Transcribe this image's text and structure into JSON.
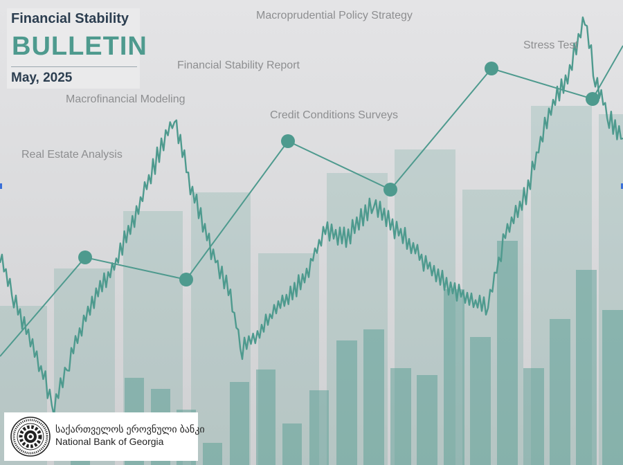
{
  "header": {
    "line1": "Financial Stability",
    "line2": "BULLETIN",
    "date": "May, 2025"
  },
  "topics": [
    "Macroprudential Policy Strategy",
    "Financial Stability Report",
    "Macrofinancial Modeling",
    "Credit Conditions Surveys",
    "Real Estate Analysis",
    "Stress Test"
  ],
  "publisher": {
    "name_ka": "საქართველოს ეროვნული ბანკი",
    "name_en": "National Bank of Georgia",
    "seal_icon": "gear-seal-icon"
  },
  "palette": {
    "background": "#dcdcdc",
    "teal": "#4e9a8e",
    "navy": "#2c3e50"
  }
}
